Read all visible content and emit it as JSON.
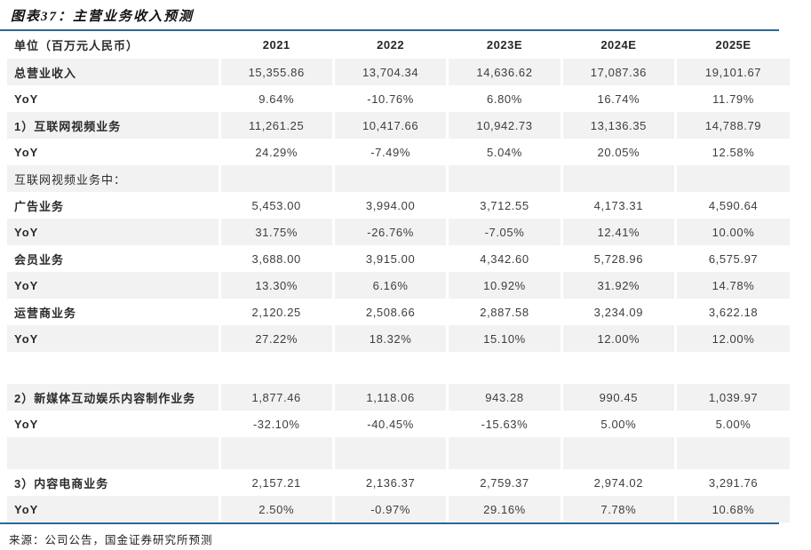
{
  "figure": {
    "title": "图表37：主营业务收入预测",
    "source": "来源：公司公告，国金证券研究所预测"
  },
  "colors": {
    "accent_line": "#2A6A96",
    "row_shade": "#F2F2F2",
    "text": "#333333"
  },
  "table": {
    "unit_header": "单位（百万元人民币）",
    "columns": [
      "2021",
      "2022",
      "2023E",
      "2024E",
      "2025E"
    ],
    "rows": [
      {
        "label": "总营业收入",
        "values": [
          "15,355.86",
          "13,704.34",
          "14,636.62",
          "17,087.36",
          "19,101.67"
        ],
        "bold": true,
        "shaded": true,
        "spacer": false
      },
      {
        "label": "YoY",
        "values": [
          "9.64%",
          "-10.76%",
          "6.80%",
          "16.74%",
          "11.79%"
        ],
        "bold": true,
        "shaded": false,
        "spacer": false
      },
      {
        "label": "1）互联网视频业务",
        "values": [
          "11,261.25",
          "10,417.66",
          "10,942.73",
          "13,136.35",
          "14,788.79"
        ],
        "bold": true,
        "shaded": true,
        "spacer": false
      },
      {
        "label": "YoY",
        "values": [
          "24.29%",
          "-7.49%",
          "5.04%",
          "20.05%",
          "12.58%"
        ],
        "bold": true,
        "shaded": false,
        "spacer": false
      },
      {
        "label": "互联网视频业务中：",
        "values": [
          "",
          "",
          "",
          "",
          ""
        ],
        "bold": false,
        "shaded": true,
        "spacer": false
      },
      {
        "label": "广告业务",
        "values": [
          "5,453.00",
          "3,994.00",
          "3,712.55",
          "4,173.31",
          "4,590.64"
        ],
        "bold": true,
        "shaded": false,
        "spacer": false
      },
      {
        "label": "YoY",
        "values": [
          "31.75%",
          "-26.76%",
          "-7.05%",
          "12.41%",
          "10.00%"
        ],
        "bold": true,
        "shaded": true,
        "spacer": false
      },
      {
        "label": "会员业务",
        "values": [
          "3,688.00",
          "3,915.00",
          "4,342.60",
          "5,728.96",
          "6,575.97"
        ],
        "bold": true,
        "shaded": false,
        "spacer": false
      },
      {
        "label": "YoY",
        "values": [
          "13.30%",
          "6.16%",
          "10.92%",
          "31.92%",
          "14.78%"
        ],
        "bold": true,
        "shaded": true,
        "spacer": false
      },
      {
        "label": "运营商业务",
        "values": [
          "2,120.25",
          "2,508.66",
          "2,887.58",
          "3,234.09",
          "3,622.18"
        ],
        "bold": true,
        "shaded": false,
        "spacer": false
      },
      {
        "label": "YoY",
        "values": [
          "27.22%",
          "18.32%",
          "15.10%",
          "12.00%",
          "12.00%"
        ],
        "bold": true,
        "shaded": true,
        "spacer": false
      },
      {
        "label": "",
        "values": [
          "",
          "",
          "",
          "",
          ""
        ],
        "bold": false,
        "shaded": false,
        "spacer": true
      },
      {
        "label": "2）新媒体互动娱乐内容制作业务",
        "values": [
          "1,877.46",
          "1,118.06",
          "943.28",
          "990.45",
          "1,039.97"
        ],
        "bold": true,
        "shaded": true,
        "spacer": false
      },
      {
        "label": "YoY",
        "values": [
          "-32.10%",
          "-40.45%",
          "-15.63%",
          "5.00%",
          "5.00%"
        ],
        "bold": true,
        "shaded": false,
        "spacer": false
      },
      {
        "label": "",
        "values": [
          "",
          "",
          "",
          "",
          ""
        ],
        "bold": false,
        "shaded": true,
        "spacer": true
      },
      {
        "label": "3）内容电商业务",
        "values": [
          "2,157.21",
          "2,136.37",
          "2,759.37",
          "2,974.02",
          "3,291.76"
        ],
        "bold": true,
        "shaded": false,
        "spacer": false
      },
      {
        "label": "YoY",
        "values": [
          "2.50%",
          "-0.97%",
          "29.16%",
          "7.78%",
          "10.68%"
        ],
        "bold": true,
        "shaded": true,
        "spacer": false
      }
    ]
  },
  "chart_data": {
    "type": "table",
    "title": "图表37：主营业务收入预测",
    "unit": "百万元人民币",
    "categories": [
      "2021",
      "2022",
      "2023E",
      "2024E",
      "2025E"
    ],
    "series": [
      {
        "name": "总营业收入",
        "values": [
          15355.86,
          13704.34,
          14636.62,
          17087.36,
          19101.67
        ],
        "yoy_pct": [
          9.64,
          -10.76,
          6.8,
          16.74,
          11.79
        ]
      },
      {
        "name": "1）互联网视频业务",
        "values": [
          11261.25,
          10417.66,
          10942.73,
          13136.35,
          14788.79
        ],
        "yoy_pct": [
          24.29,
          -7.49,
          5.04,
          20.05,
          12.58
        ]
      },
      {
        "name": "广告业务",
        "values": [
          5453.0,
          3994.0,
          3712.55,
          4173.31,
          4590.64
        ],
        "yoy_pct": [
          31.75,
          -26.76,
          -7.05,
          12.41,
          10.0
        ]
      },
      {
        "name": "会员业务",
        "values": [
          3688.0,
          3915.0,
          4342.6,
          5728.96,
          6575.97
        ],
        "yoy_pct": [
          13.3,
          6.16,
          10.92,
          31.92,
          14.78
        ]
      },
      {
        "name": "运营商业务",
        "values": [
          2120.25,
          2508.66,
          2887.58,
          3234.09,
          3622.18
        ],
        "yoy_pct": [
          27.22,
          18.32,
          15.1,
          12.0,
          12.0
        ]
      },
      {
        "name": "2）新媒体互动娱乐内容制作业务",
        "values": [
          1877.46,
          1118.06,
          943.28,
          990.45,
          1039.97
        ],
        "yoy_pct": [
          -32.1,
          -40.45,
          -15.63,
          5.0,
          5.0
        ]
      },
      {
        "name": "3）内容电商业务",
        "values": [
          2157.21,
          2136.37,
          2759.37,
          2974.02,
          3291.76
        ],
        "yoy_pct": [
          2.5,
          -0.97,
          29.16,
          7.78,
          10.68
        ]
      }
    ]
  }
}
